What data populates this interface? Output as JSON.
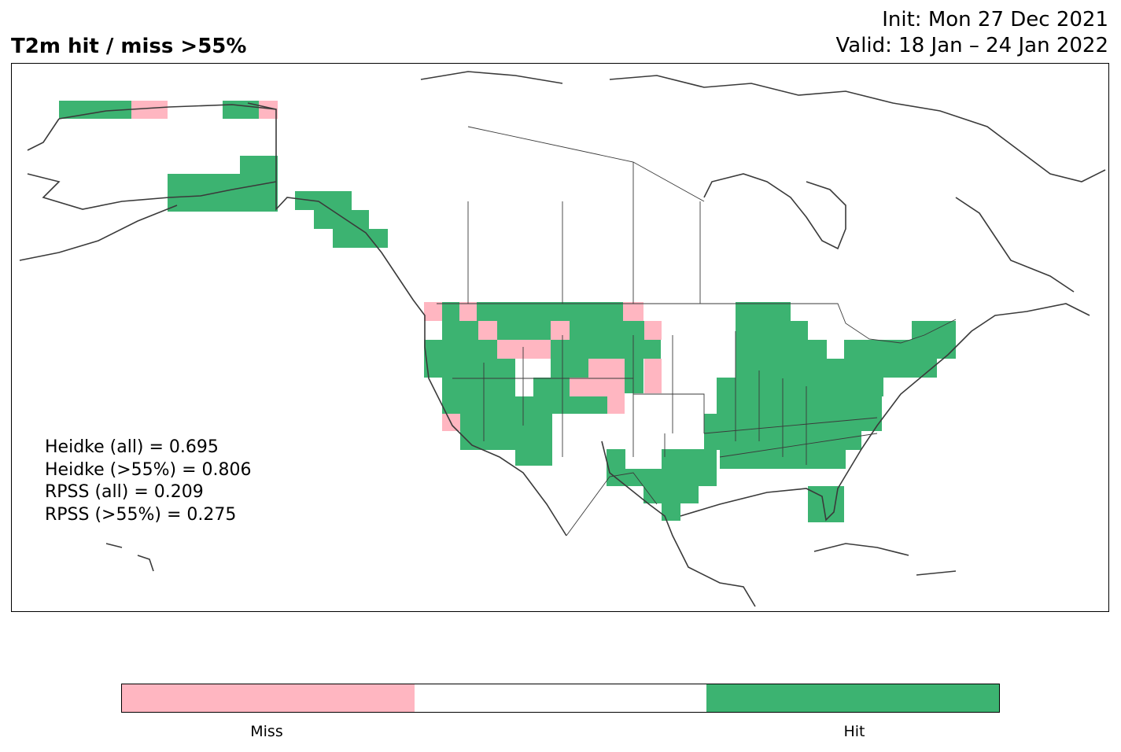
{
  "header": {
    "title": "T2m hit / miss  >55%",
    "init": "Init: Mon 27 Dec 2021",
    "valid": "Valid: 18 Jan – 24 Jan 2022"
  },
  "scores": {
    "heidke_all": "Heidke (all) = 0.695",
    "heidke_55": "Heidke (>55%) = 0.806",
    "rpss_all": "RPSS (all) = 0.209",
    "rpss_55": "RPSS (>55%) = 0.275"
  },
  "colorbar": {
    "miss_label": "Miss",
    "hit_label": "Hit",
    "colors": [
      "#ffb6c1",
      "#ffffff",
      "#3cb371"
    ]
  },
  "legend_colors": {
    "hit": "#3cb371",
    "miss": "#ffb6c1"
  }
}
